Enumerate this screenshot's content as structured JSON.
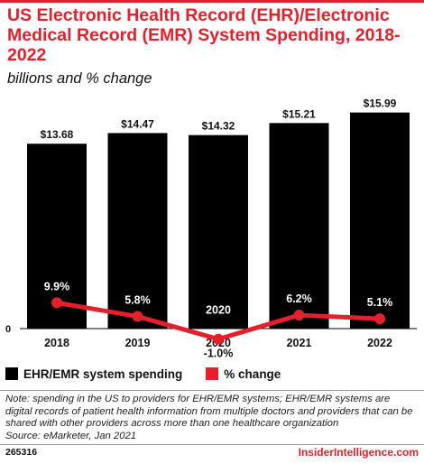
{
  "header": {
    "title": "US Electronic Health Record (EHR)/Electronic Medical Record (EMR) System Spending, 2018-2022",
    "subtitle": "billions and % change"
  },
  "legend": {
    "spending_label": "EHR/EMR system spending",
    "change_label": "% change"
  },
  "colors": {
    "bars": "#000000",
    "line": "#e4202d",
    "title": "#e4202d"
  },
  "footer": {
    "note_line1": "Note: spending in the US to providers for EHR/EMR systems; EHR/EMR systems are digital records of patient health information from multiple doctors and providers that can be shared with other providers across more than one healthcare organization",
    "source": "Source: eMarketer, Jan 2021",
    "id": "265316",
    "brand": "InsiderIntelligence.com"
  },
  "chart_data": {
    "type": "bar",
    "categories": [
      "2018",
      "2019",
      "2020",
      "2021",
      "2022"
    ],
    "series": [
      {
        "name": "EHR/EMR system spending",
        "type": "bar",
        "values": [
          13.68,
          14.47,
          14.32,
          15.21,
          15.99
        ],
        "labels": [
          "$13.68",
          "$14.47",
          "$14.32",
          "$15.21",
          "$15.99"
        ]
      },
      {
        "name": "% change",
        "type": "line",
        "values": [
          9.9,
          5.8,
          -1.0,
          6.2,
          5.1
        ],
        "labels": [
          "9.9%",
          "5.8%",
          "-1.0%",
          "6.2%",
          "5.1%"
        ]
      }
    ],
    "y_axis_label": "0",
    "ylim": [
      0,
      16
    ],
    "y2lim": [
      -6,
      40
    ],
    "grid": false,
    "legend_position": "bottom"
  }
}
